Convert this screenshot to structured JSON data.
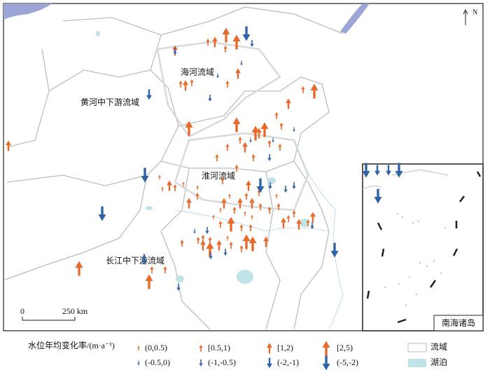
{
  "map": {
    "regions": [
      "海河流域",
      "黄河中下游流域",
      "淮河流域",
      "长江中下游流域"
    ],
    "north": "N",
    "inset": "南海诸岛",
    "scale": {
      "zero": "0",
      "distance": "250 km"
    }
  },
  "legend": {
    "title": "水位年均变化率/(m·a⁻¹)",
    "items": [
      "(0,0.5)",
      "[0.5,1)",
      "[1,2)",
      "[2,5)",
      "(-0.5,0)",
      "(-1,-0.5)",
      "(-2,-1)",
      "(-5,-2)"
    ],
    "basin": "流域",
    "lake": "湖泊"
  }
}
